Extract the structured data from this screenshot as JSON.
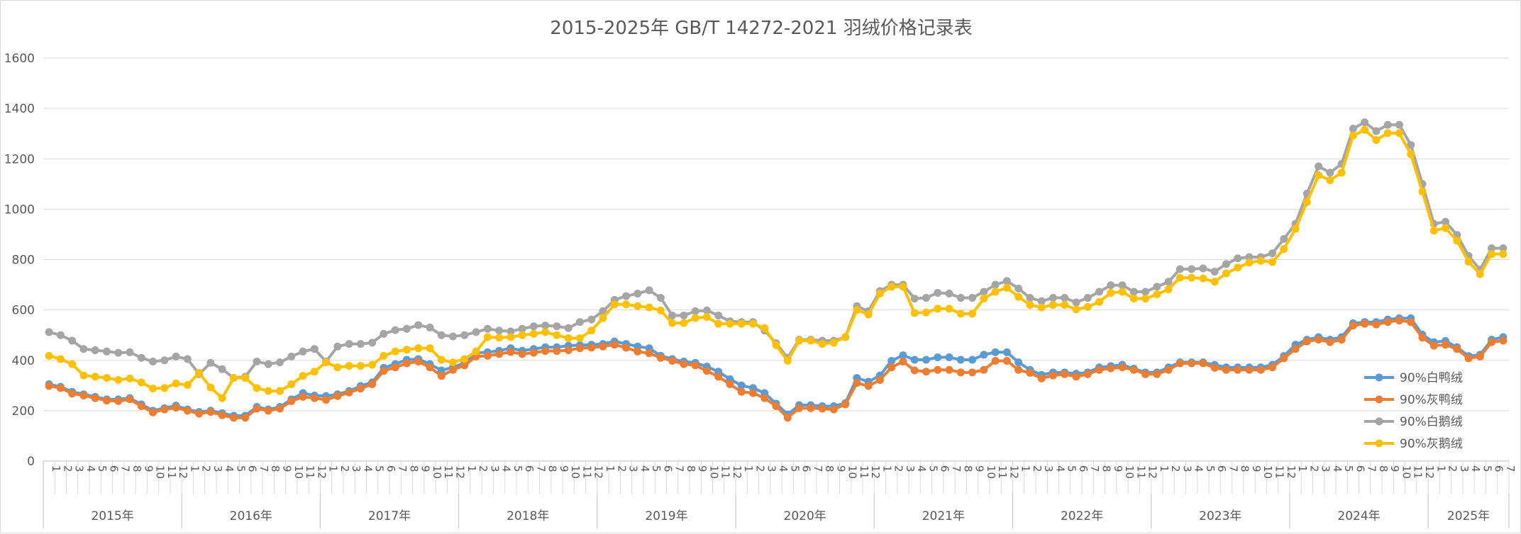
{
  "chart_data": {
    "type": "line",
    "title": "2015-2025年 GB/T 14272-2021 羽绒价格记录表",
    "xlabel": "",
    "ylabel": "",
    "ylim": [
      0,
      1600
    ],
    "yticks": [
      0,
      200,
      400,
      600,
      800,
      1000,
      1200,
      1400,
      1600
    ],
    "grid": true,
    "legend_position": "bottom-right",
    "year_groups": [
      {
        "label": "2015年",
        "months": 12
      },
      {
        "label": "2016年",
        "months": 12
      },
      {
        "label": "2017年",
        "months": 12
      },
      {
        "label": "2018年",
        "months": 12
      },
      {
        "label": "2019年",
        "months": 12
      },
      {
        "label": "2020年",
        "months": 12
      },
      {
        "label": "2021年",
        "months": 12
      },
      {
        "label": "2022年",
        "months": 12
      },
      {
        "label": "2023年",
        "months": 12
      },
      {
        "label": "2024年",
        "months": 12
      },
      {
        "label": "2025年",
        "months": 7
      }
    ],
    "month_labels": [
      "1",
      "2",
      "3",
      "4",
      "5",
      "6",
      "7",
      "8",
      "9",
      "10",
      "11",
      "12"
    ],
    "series": [
      {
        "name": "90%白鸭绒",
        "color": "#5b9bd5",
        "values": [
          305,
          295,
          275,
          265,
          255,
          245,
          245,
          250,
          225,
          200,
          210,
          220,
          205,
          195,
          200,
          190,
          180,
          180,
          215,
          205,
          215,
          245,
          270,
          260,
          258,
          265,
          278,
          298,
          312,
          370,
          385,
          402,
          405,
          385,
          360,
          372,
          390,
          430,
          432,
          438,
          448,
          438,
          445,
          452,
          452,
          458,
          460,
          462,
          465,
          475,
          465,
          455,
          448,
          418,
          405,
          395,
          390,
          375,
          355,
          325,
          300,
          290,
          270,
          228,
          185,
          222,
          222,
          218,
          218,
          230,
          330,
          315,
          340,
          398,
          420,
          402,
          402,
          412,
          412,
          402,
          402,
          422,
          432,
          432,
          392,
          362,
          342,
          352,
          352,
          347,
          352,
          372,
          377,
          382,
          367,
          352,
          352,
          372,
          392,
          392,
          392,
          382,
          372,
          372,
          372,
          372,
          382,
          417,
          462,
          482,
          492,
          482,
          492,
          547,
          552,
          552,
          562,
          567,
          567,
          502,
          472,
          477,
          452,
          417,
          422,
          482,
          492
        ]
      },
      {
        "name": "90%灰鸭绒",
        "color": "#ed7d31",
        "values": [
          298,
          290,
          268,
          260,
          250,
          240,
          238,
          245,
          218,
          193,
          205,
          212,
          200,
          188,
          195,
          182,
          172,
          172,
          208,
          200,
          208,
          238,
          255,
          250,
          243,
          258,
          272,
          288,
          305,
          358,
          372,
          388,
          395,
          372,
          338,
          362,
          380,
          415,
          418,
          425,
          433,
          425,
          430,
          437,
          437,
          440,
          448,
          450,
          455,
          462,
          450,
          435,
          428,
          410,
          398,
          385,
          380,
          358,
          335,
          305,
          275,
          270,
          250,
          218,
          172,
          210,
          210,
          208,
          205,
          225,
          310,
          298,
          322,
          372,
          395,
          360,
          355,
          362,
          362,
          352,
          352,
          362,
          398,
          398,
          362,
          350,
          328,
          340,
          345,
          335,
          345,
          362,
          368,
          372,
          362,
          345,
          345,
          362,
          388,
          388,
          388,
          370,
          362,
          362,
          362,
          362,
          372,
          408,
          445,
          475,
          482,
          472,
          482,
          538,
          545,
          542,
          552,
          558,
          552,
          490,
          458,
          462,
          445,
          408,
          415,
          472,
          478
        ]
      },
      {
        "name": "90%白鹅绒",
        "color": "#a5a5a5",
        "values": [
          512,
          500,
          478,
          445,
          440,
          435,
          430,
          432,
          410,
          395,
          400,
          415,
          405,
          345,
          390,
          365,
          330,
          335,
          395,
          385,
          392,
          415,
          435,
          445,
          395,
          455,
          465,
          465,
          470,
          505,
          520,
          525,
          540,
          530,
          500,
          495,
          500,
          512,
          525,
          518,
          515,
          525,
          535,
          538,
          535,
          528,
          552,
          562,
          595,
          640,
          655,
          665,
          678,
          648,
          578,
          578,
          595,
          598,
          578,
          555,
          552,
          552,
          518,
          468,
          410,
          482,
          482,
          478,
          478,
          492,
          615,
          595,
          675,
          700,
          700,
          645,
          648,
          668,
          665,
          648,
          648,
          672,
          700,
          715,
          685,
          648,
          635,
          648,
          648,
          630,
          648,
          672,
          698,
          698,
          672,
          672,
          692,
          712,
          762,
          762,
          765,
          752,
          782,
          805,
          810,
          810,
          825,
          882,
          942,
          1062,
          1170,
          1145,
          1180,
          1320,
          1345,
          1310,
          1335,
          1335,
          1255,
          1100,
          942,
          950,
          898,
          815,
          760,
          845,
          845
        ]
      },
      {
        "name": "90%灰鹅绒",
        "color": "#ffc000",
        "values": [
          418,
          405,
          385,
          340,
          335,
          330,
          322,
          328,
          312,
          288,
          290,
          308,
          302,
          350,
          292,
          250,
          330,
          330,
          290,
          278,
          278,
          305,
          338,
          355,
          392,
          372,
          378,
          378,
          382,
          418,
          435,
          442,
          448,
          448,
          402,
          392,
          405,
          435,
          492,
          490,
          492,
          500,
          505,
          512,
          500,
          488,
          488,
          518,
          568,
          622,
          622,
          615,
          610,
          598,
          548,
          548,
          568,
          572,
          545,
          545,
          545,
          545,
          528,
          460,
          398,
          478,
          478,
          465,
          470,
          492,
          600,
          582,
          665,
          692,
          692,
          588,
          590,
          605,
          605,
          585,
          585,
          645,
          672,
          688,
          652,
          620,
          610,
          620,
          620,
          602,
          612,
          632,
          668,
          672,
          645,
          645,
          662,
          682,
          728,
          728,
          725,
          712,
          745,
          768,
          788,
          795,
          790,
          842,
          922,
          1028,
          1135,
          1115,
          1145,
          1292,
          1315,
          1275,
          1302,
          1302,
          1218,
          1070,
          915,
          925,
          875,
          792,
          742,
          822,
          822
        ]
      }
    ]
  }
}
